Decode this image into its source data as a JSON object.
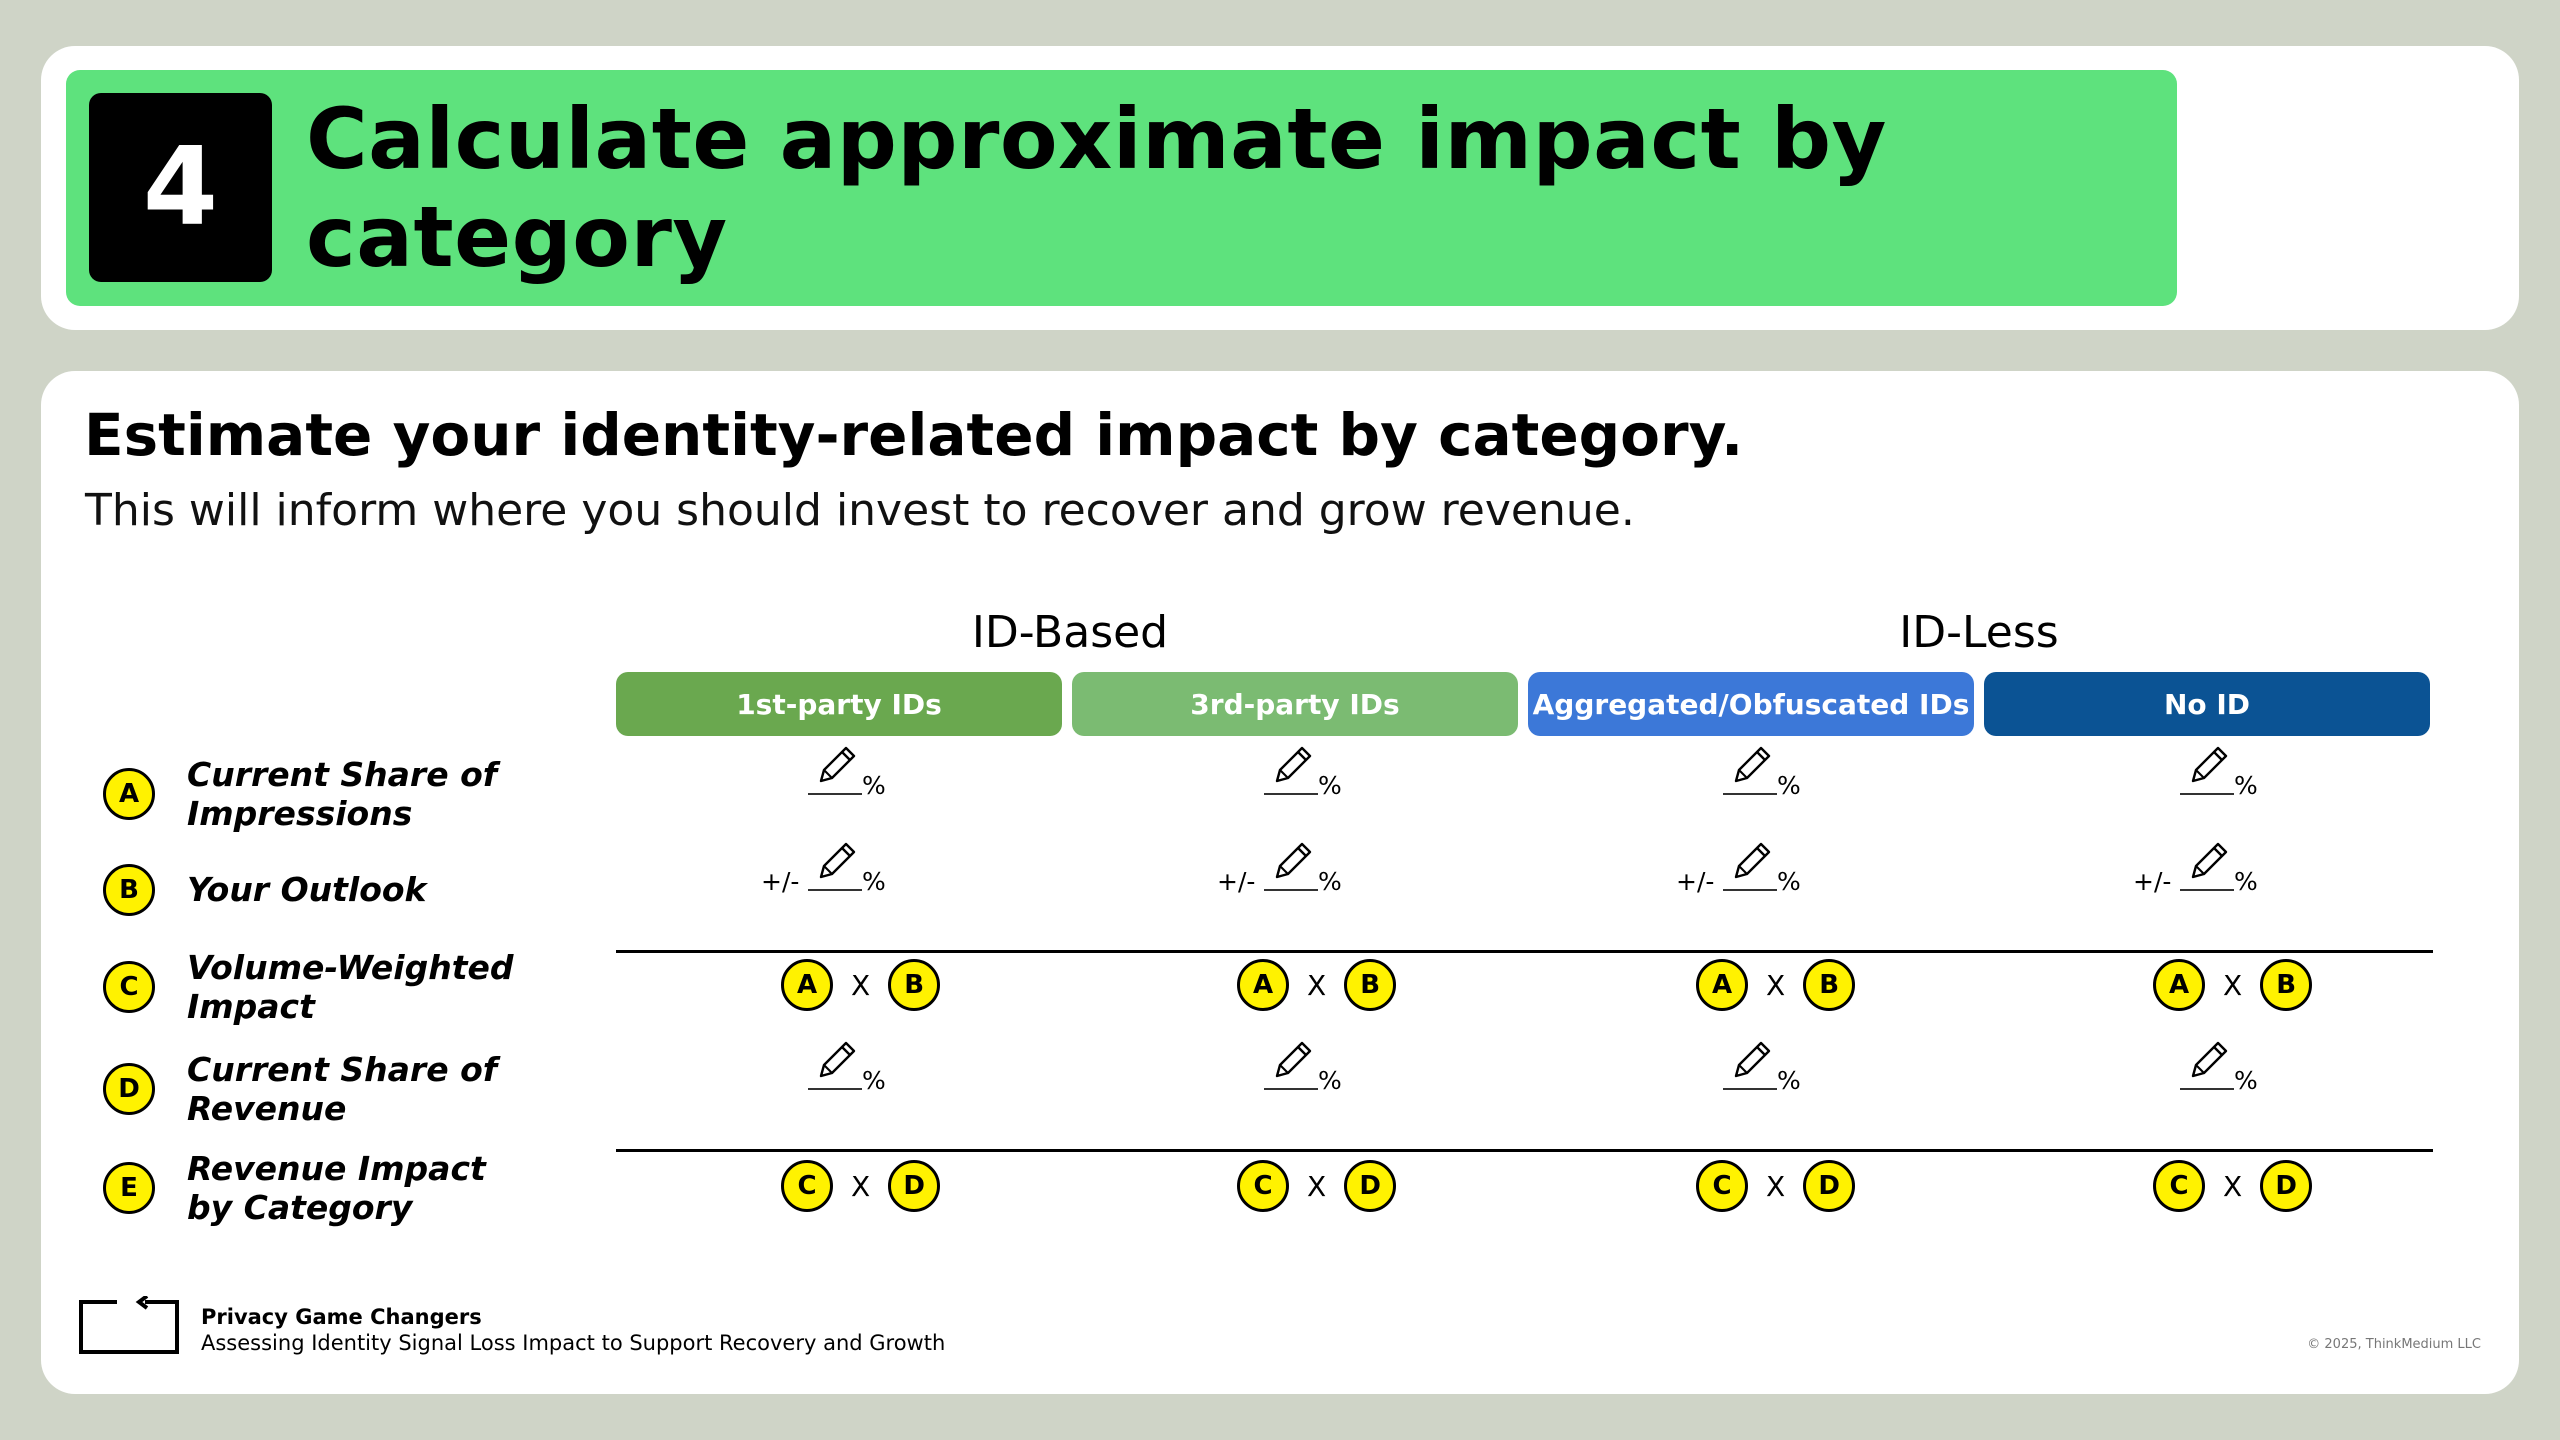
{
  "header": {
    "step_number": "4",
    "title": "Calculate approximate impact by category",
    "banner_color": "#5ee27d"
  },
  "main": {
    "headline": "Estimate your identity-related impact by category.",
    "subhead": "This will inform where you should invest to recover and grow revenue."
  },
  "groups": {
    "id_based": "ID-Based",
    "id_less": "ID-Less"
  },
  "columns": [
    {
      "label": "1st-party IDs",
      "color": "#6aa84f"
    },
    {
      "label": "3rd-party IDs",
      "color": "#7bbb72"
    },
    {
      "label": "Aggregated/Obfuscated IDs",
      "color": "#3c78d8"
    },
    {
      "label": "No ID",
      "color": "#0b5394"
    }
  ],
  "rows": [
    {
      "letter": "A",
      "label": "Current Share of Impressions",
      "type": "input",
      "prefix": "",
      "suffix": "%"
    },
    {
      "letter": "B",
      "label": "Your Outlook",
      "type": "input",
      "prefix": "+/-",
      "suffix": "%"
    },
    {
      "letter": "C",
      "label": "Volume-Weighted Impact",
      "type": "formula",
      "left": "A",
      "op": "X",
      "right": "B"
    },
    {
      "letter": "D",
      "label": "Current Share of Revenue",
      "type": "input",
      "prefix": "",
      "suffix": "%"
    },
    {
      "letter": "E",
      "label": "Revenue Impact by Category",
      "type": "formula",
      "left": "C",
      "op": "X",
      "right": "D"
    }
  ],
  "footer": {
    "title": "Privacy Game Changers",
    "subtitle": "Assessing Identity Signal Loss Impact to Support Recovery and Growth",
    "copyright": "© 2025, ThinkMedium LLC"
  },
  "icons": {
    "pencil": "pencil-icon",
    "logo": "bracket-arrow-logo-icon"
  }
}
